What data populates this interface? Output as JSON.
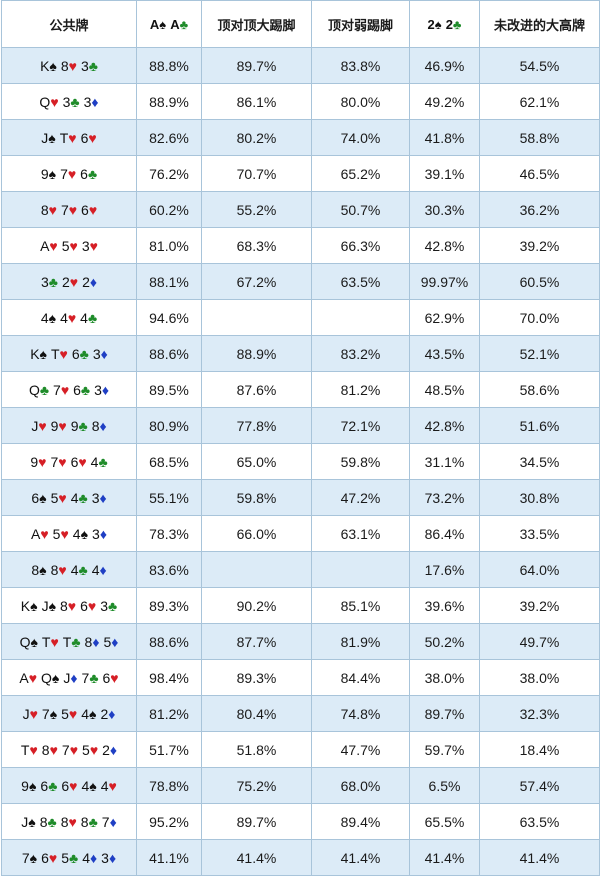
{
  "header": {
    "board": "公共牌",
    "aa": {
      "cards": [
        {
          "r": "A",
          "s": "♠",
          "k": "s"
        },
        {
          "r": "A",
          "s": "♣",
          "k": "c"
        }
      ]
    },
    "top_pair_top_kicker": "顶对顶大踢脚",
    "top_pair_weak_kicker": "顶对弱踢脚",
    "twos": {
      "cards": [
        {
          "r": "2",
          "s": "♠",
          "k": "s"
        },
        {
          "r": "2",
          "s": "♣",
          "k": "c"
        }
      ]
    },
    "unimproved_high_card": "未改进的大高牌"
  },
  "colors": {
    "header_bg": "#ffffff",
    "row_band": "#dcebf7",
    "border": "#a8c4da",
    "heart": "#d61f26",
    "diamond": "#1f3fc4",
    "club": "#1f8c2a",
    "spade": "#111111"
  },
  "rows": [
    {
      "board": [
        {
          "r": "K",
          "s": "♠",
          "k": "s"
        },
        {
          "r": "8",
          "s": "♥",
          "k": "h"
        },
        {
          "r": "3",
          "s": "♣",
          "k": "c"
        }
      ],
      "aa": "88.8%",
      "tptk": "89.7%",
      "tpwk": "83.8%",
      "twos": "46.9%",
      "hc": "54.5%"
    },
    {
      "board": [
        {
          "r": "Q",
          "s": "♥",
          "k": "h"
        },
        {
          "r": "3",
          "s": "♣",
          "k": "c"
        },
        {
          "r": "3",
          "s": "♦",
          "k": "d"
        }
      ],
      "aa": "88.9%",
      "tptk": "86.1%",
      "tpwk": "80.0%",
      "twos": "49.2%",
      "hc": "62.1%"
    },
    {
      "board": [
        {
          "r": "J",
          "s": "♠",
          "k": "s"
        },
        {
          "r": "T",
          "s": "♥",
          "k": "h"
        },
        {
          "r": "6",
          "s": "♥",
          "k": "h"
        }
      ],
      "aa": "82.6%",
      "tptk": "80.2%",
      "tpwk": "74.0%",
      "twos": "41.8%",
      "hc": "58.8%"
    },
    {
      "board": [
        {
          "r": "9",
          "s": "♠",
          "k": "s"
        },
        {
          "r": "7",
          "s": "♥",
          "k": "h"
        },
        {
          "r": "6",
          "s": "♣",
          "k": "c"
        }
      ],
      "aa": "76.2%",
      "tptk": "70.7%",
      "tpwk": "65.2%",
      "twos": "39.1%",
      "hc": "46.5%"
    },
    {
      "board": [
        {
          "r": "8",
          "s": "♥",
          "k": "h"
        },
        {
          "r": "7",
          "s": "♥",
          "k": "h"
        },
        {
          "r": "6",
          "s": "♥",
          "k": "h"
        }
      ],
      "aa": "60.2%",
      "tptk": "55.2%",
      "tpwk": "50.7%",
      "twos": "30.3%",
      "hc": "36.2%"
    },
    {
      "board": [
        {
          "r": "A",
          "s": "♥",
          "k": "h"
        },
        {
          "r": "5",
          "s": "♥",
          "k": "h"
        },
        {
          "r": "3",
          "s": "♥",
          "k": "h"
        }
      ],
      "aa": "81.0%",
      "tptk": "68.3%",
      "tpwk": "66.3%",
      "twos": "42.8%",
      "hc": "39.2%"
    },
    {
      "board": [
        {
          "r": "3",
          "s": "♣",
          "k": "c"
        },
        {
          "r": "2",
          "s": "♥",
          "k": "h"
        },
        {
          "r": "2",
          "s": "♦",
          "k": "d"
        }
      ],
      "aa": "88.1%",
      "tptk": "67.2%",
      "tpwk": "63.5%",
      "twos": "99.97%",
      "hc": "60.5%"
    },
    {
      "board": [
        {
          "r": "4",
          "s": "♠",
          "k": "s"
        },
        {
          "r": "4",
          "s": "♥",
          "k": "h"
        },
        {
          "r": "4",
          "s": "♣",
          "k": "c"
        }
      ],
      "aa": "94.6%",
      "tptk": "",
      "tpwk": "",
      "twos": "62.9%",
      "hc": "70.0%"
    },
    {
      "board": [
        {
          "r": "K",
          "s": "♠",
          "k": "s"
        },
        {
          "r": "T",
          "s": "♥",
          "k": "h"
        },
        {
          "r": "6",
          "s": "♣",
          "k": "c"
        },
        {
          "r": "3",
          "s": "♦",
          "k": "d"
        }
      ],
      "aa": "88.6%",
      "tptk": "88.9%",
      "tpwk": "83.2%",
      "twos": "43.5%",
      "hc": "52.1%"
    },
    {
      "board": [
        {
          "r": "Q",
          "s": "♣",
          "k": "c"
        },
        {
          "r": "7",
          "s": "♥",
          "k": "h"
        },
        {
          "r": "6",
          "s": "♣",
          "k": "c"
        },
        {
          "r": "3",
          "s": "♦",
          "k": "d"
        }
      ],
      "aa": "89.5%",
      "tptk": "87.6%",
      "tpwk": "81.2%",
      "twos": "48.5%",
      "hc": "58.6%"
    },
    {
      "board": [
        {
          "r": "J",
          "s": "♥",
          "k": "h"
        },
        {
          "r": "9",
          "s": "♥",
          "k": "h"
        },
        {
          "r": "9",
          "s": "♣",
          "k": "c"
        },
        {
          "r": "8",
          "s": "♦",
          "k": "d"
        }
      ],
      "aa": "80.9%",
      "tptk": "77.8%",
      "tpwk": "72.1%",
      "twos": "42.8%",
      "hc": "51.6%"
    },
    {
      "board": [
        {
          "r": "9",
          "s": "♥",
          "k": "h"
        },
        {
          "r": "7",
          "s": "♥",
          "k": "h"
        },
        {
          "r": "6",
          "s": "♥",
          "k": "h"
        },
        {
          "r": "4",
          "s": "♣",
          "k": "c"
        }
      ],
      "aa": "68.5%",
      "tptk": "65.0%",
      "tpwk": "59.8%",
      "twos": "31.1%",
      "hc": "34.5%"
    },
    {
      "board": [
        {
          "r": "6",
          "s": "♠",
          "k": "s"
        },
        {
          "r": "5",
          "s": "♥",
          "k": "h"
        },
        {
          "r": "4",
          "s": "♣",
          "k": "c"
        },
        {
          "r": "3",
          "s": "♦",
          "k": "d"
        }
      ],
      "aa": "55.1%",
      "tptk": "59.8%",
      "tpwk": "47.2%",
      "twos": "73.2%",
      "hc": "30.8%"
    },
    {
      "board": [
        {
          "r": "A",
          "s": "♥",
          "k": "h"
        },
        {
          "r": "5",
          "s": "♥",
          "k": "h"
        },
        {
          "r": "4",
          "s": "♠",
          "k": "s"
        },
        {
          "r": "3",
          "s": "♦",
          "k": "d"
        }
      ],
      "aa": "78.3%",
      "tptk": "66.0%",
      "tpwk": "63.1%",
      "twos": "86.4%",
      "hc": "33.5%"
    },
    {
      "board": [
        {
          "r": "8",
          "s": "♠",
          "k": "s"
        },
        {
          "r": "8",
          "s": "♥",
          "k": "h"
        },
        {
          "r": "4",
          "s": "♣",
          "k": "c"
        },
        {
          "r": "4",
          "s": "♦",
          "k": "d"
        }
      ],
      "aa": "83.6%",
      "tptk": "",
      "tpwk": "",
      "twos": "17.6%",
      "hc": "64.0%"
    },
    {
      "board": [
        {
          "r": "K",
          "s": "♠",
          "k": "s"
        },
        {
          "r": "J",
          "s": "♠",
          "k": "s"
        },
        {
          "r": "8",
          "s": "♥",
          "k": "h"
        },
        {
          "r": "6",
          "s": "♥",
          "k": "h"
        },
        {
          "r": "3",
          "s": "♣",
          "k": "c"
        }
      ],
      "aa": "89.3%",
      "tptk": "90.2%",
      "tpwk": "85.1%",
      "twos": "39.6%",
      "hc": "39.2%"
    },
    {
      "board": [
        {
          "r": "Q",
          "s": "♠",
          "k": "s"
        },
        {
          "r": "T",
          "s": "♥",
          "k": "h"
        },
        {
          "r": "T",
          "s": "♣",
          "k": "c"
        },
        {
          "r": "8",
          "s": "♦",
          "k": "d"
        },
        {
          "r": "5",
          "s": "♦",
          "k": "d"
        }
      ],
      "aa": "88.6%",
      "tptk": "87.7%",
      "tpwk": "81.9%",
      "twos": "50.2%",
      "hc": "49.7%"
    },
    {
      "board": [
        {
          "r": "A",
          "s": "♥",
          "k": "h"
        },
        {
          "r": "Q",
          "s": "♠",
          "k": "s"
        },
        {
          "r": "J",
          "s": "♦",
          "k": "d"
        },
        {
          "r": "7",
          "s": "♣",
          "k": "c"
        },
        {
          "r": "6",
          "s": "♥",
          "k": "h"
        }
      ],
      "aa": "98.4%",
      "tptk": "89.3%",
      "tpwk": "84.4%",
      "twos": "38.0%",
      "hc": "38.0%"
    },
    {
      "board": [
        {
          "r": "J",
          "s": "♥",
          "k": "h"
        },
        {
          "r": "7",
          "s": "♠",
          "k": "s"
        },
        {
          "r": "5",
          "s": "♥",
          "k": "h"
        },
        {
          "r": "4",
          "s": "♠",
          "k": "s"
        },
        {
          "r": "2",
          "s": "♦",
          "k": "d"
        }
      ],
      "aa": "81.2%",
      "tptk": "80.4%",
      "tpwk": "74.8%",
      "twos": "89.7%",
      "hc": "32.3%"
    },
    {
      "board": [
        {
          "r": "T",
          "s": "♥",
          "k": "h"
        },
        {
          "r": "8",
          "s": "♥",
          "k": "h"
        },
        {
          "r": "7",
          "s": "♥",
          "k": "h"
        },
        {
          "r": "5",
          "s": "♥",
          "k": "h"
        },
        {
          "r": "2",
          "s": "♦",
          "k": "d"
        }
      ],
      "aa": "51.7%",
      "tptk": "51.8%",
      "tpwk": "47.7%",
      "twos": "59.7%",
      "hc": "18.4%"
    },
    {
      "board": [
        {
          "r": "9",
          "s": "♠",
          "k": "s"
        },
        {
          "r": "6",
          "s": "♣",
          "k": "c"
        },
        {
          "r": "6",
          "s": "♥",
          "k": "h"
        },
        {
          "r": "4",
          "s": "♠",
          "k": "s"
        },
        {
          "r": "4",
          "s": "♥",
          "k": "h"
        }
      ],
      "aa": "78.8%",
      "tptk": "75.2%",
      "tpwk": "68.0%",
      "twos": "6.5%",
      "hc": "57.4%"
    },
    {
      "board": [
        {
          "r": "J",
          "s": "♠",
          "k": "s"
        },
        {
          "r": "8",
          "s": "♣",
          "k": "c"
        },
        {
          "r": "8",
          "s": "♥",
          "k": "h"
        },
        {
          "r": "8",
          "s": "♣",
          "k": "c"
        },
        {
          "r": "7",
          "s": "♦",
          "k": "d"
        }
      ],
      "aa": "95.2%",
      "tptk": "89.7%",
      "tpwk": "89.4%",
      "twos": "65.5%",
      "hc": "63.5%"
    },
    {
      "board": [
        {
          "r": "7",
          "s": "♠",
          "k": "s"
        },
        {
          "r": "6",
          "s": "♥",
          "k": "h"
        },
        {
          "r": "5",
          "s": "♣",
          "k": "c"
        },
        {
          "r": "4",
          "s": "♦",
          "k": "d"
        },
        {
          "r": "3",
          "s": "♦",
          "k": "d"
        }
      ],
      "aa": "41.1%",
      "tptk": "41.4%",
      "tpwk": "41.4%",
      "twos": "41.4%",
      "hc": "41.4%"
    }
  ]
}
